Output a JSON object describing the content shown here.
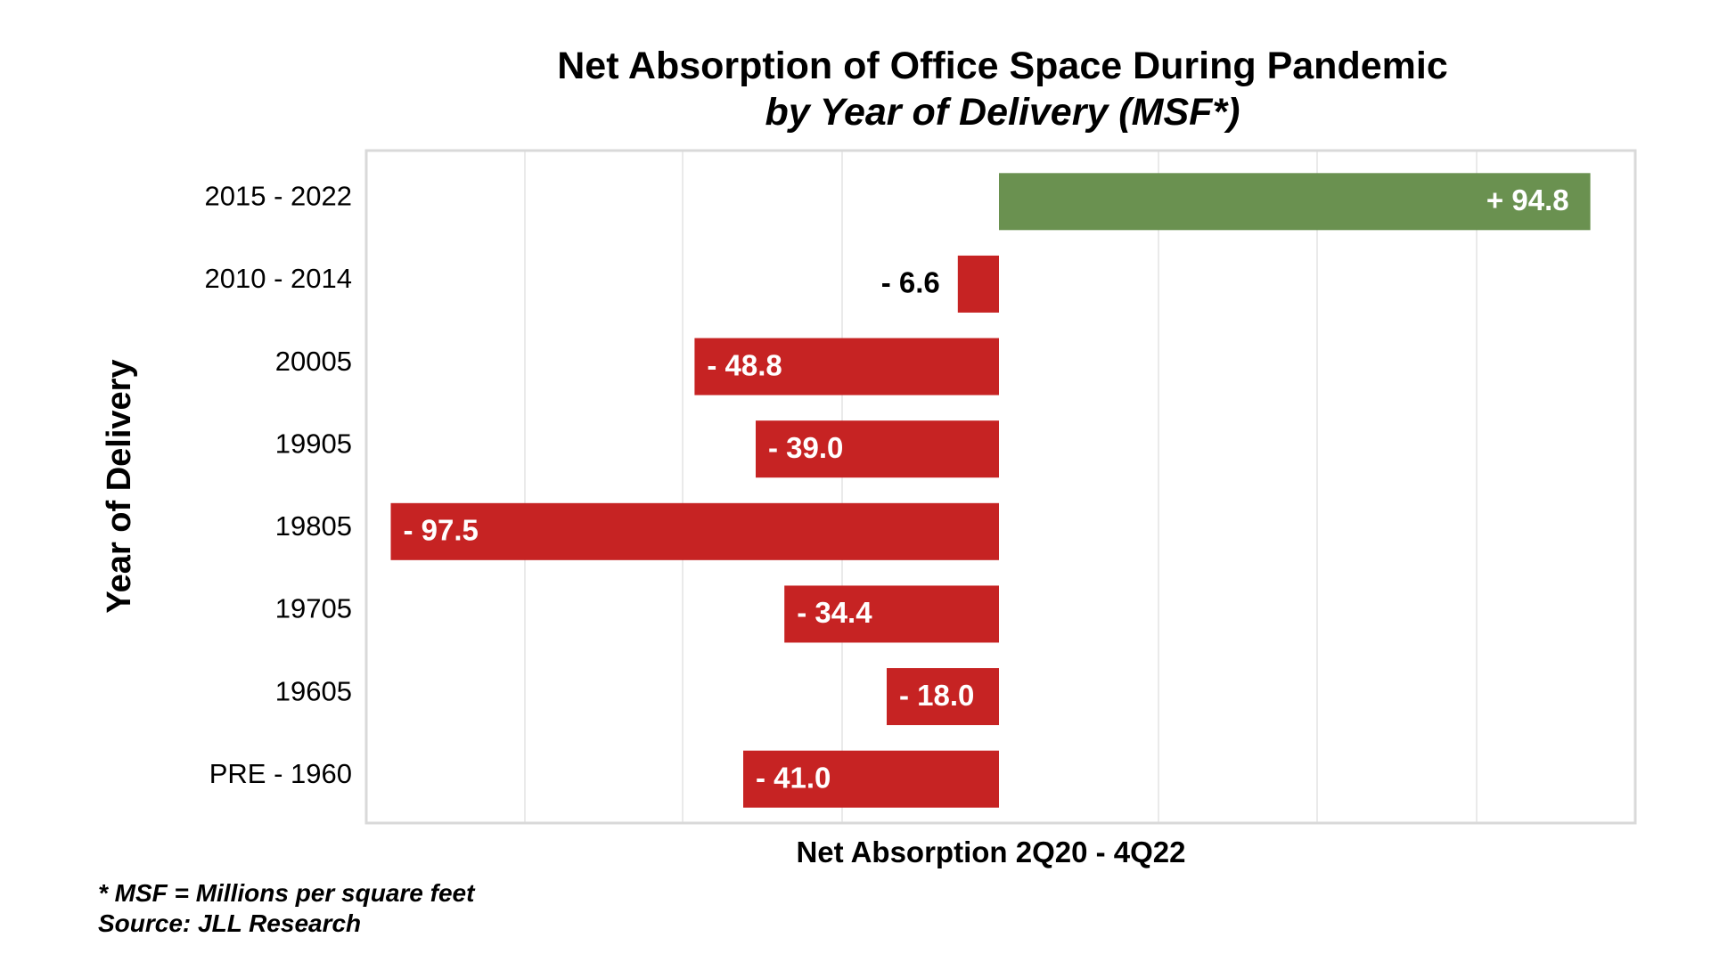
{
  "chart_data": {
    "type": "bar",
    "orientation": "horizontal",
    "title": "Net Absorption of Office Space During Pandemic",
    "subtitle": "by Year of Delivery (MSF*)",
    "xlabel": "Net Absorption 2Q20 - 4Q22",
    "ylabel": "Year of Delivery",
    "categories": [
      "2015 - 2022",
      "2010 - 2014",
      "20005",
      "19905",
      "19805",
      "19705",
      "19605",
      "PRE - 1960"
    ],
    "values": [
      94.8,
      -6.6,
      -48.8,
      -39.0,
      -97.5,
      -34.4,
      -18.0,
      -41.0
    ],
    "data_labels": [
      "+ 94.8",
      "- 6.6",
      "- 48.8",
      "- 39.0",
      "- 97.5",
      "- 34.4",
      "- 18.0",
      "- 41.0"
    ],
    "xlim": [
      -100,
      100
    ],
    "grid": true,
    "legend": "none",
    "colors": {
      "positive": "#6a9150",
      "negative": "#c62323"
    }
  },
  "footnotes": {
    "msf": "* MSF = Millions per square feet",
    "source": "Source: JLL Research"
  }
}
